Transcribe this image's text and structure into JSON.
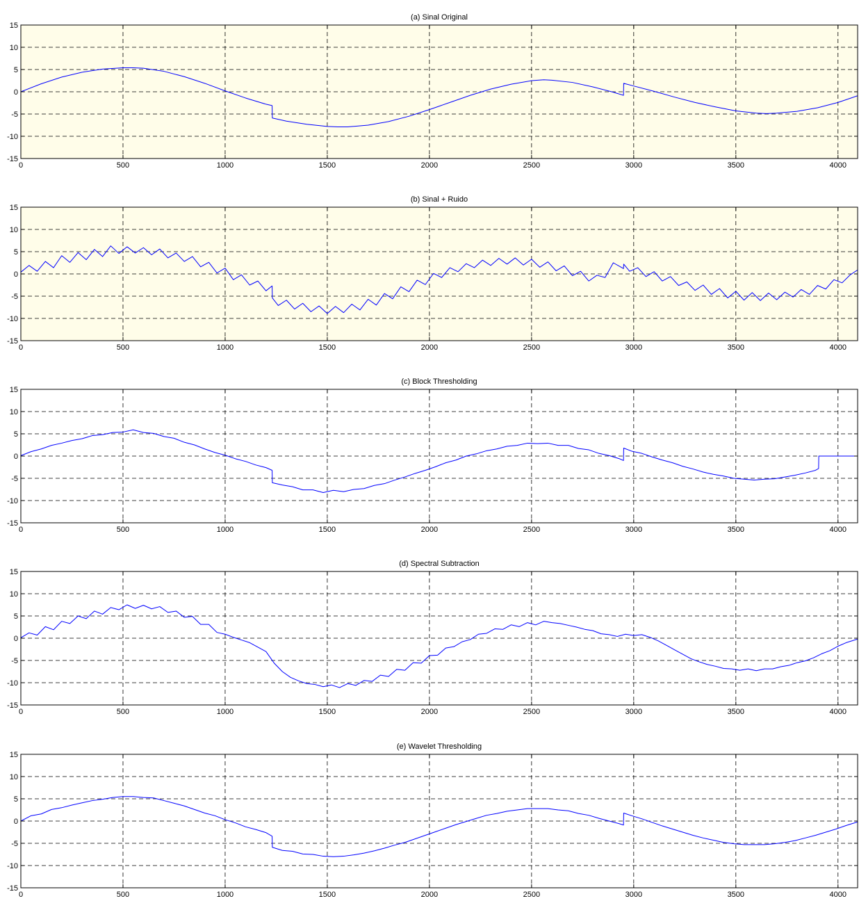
{
  "style": {
    "line_color": "#0000ff",
    "grid_color": "#000000",
    "axes_color": "#000000",
    "highlight_bg": "#fffde9",
    "plain_bg": "#ffffff"
  },
  "chart_data": [
    {
      "type": "line",
      "title": "(a) Sinal Original",
      "xlabel": "",
      "ylabel": "",
      "xlim": [
        0,
        4096
      ],
      "ylim": [
        -15,
        15
      ],
      "xticks": [
        0,
        500,
        1000,
        1500,
        2000,
        2500,
        3000,
        3500,
        4000
      ],
      "yticks": [
        15,
        10,
        5,
        0,
        -5,
        -10,
        -15
      ],
      "grid": true,
      "background": "highlight",
      "series": [
        {
          "x": [
            0,
            100,
            200,
            300,
            400,
            500,
            550,
            600,
            700,
            800,
            900,
            1000,
            1100,
            1200,
            1230,
            1231,
            1300,
            1400,
            1500,
            1550,
            1600,
            1700,
            1800,
            1900,
            2000,
            2100,
            2200,
            2300,
            2400,
            2500,
            2560,
            2600,
            2700,
            2800,
            2900,
            2950,
            2951,
            3000,
            3100,
            3200,
            3300,
            3400,
            3500,
            3600,
            3650,
            3700,
            3800,
            3900,
            4000,
            4096
          ],
          "y": [
            0,
            1.8,
            3.3,
            4.4,
            5.1,
            5.4,
            5.4,
            5.3,
            4.6,
            3.4,
            1.9,
            0.2,
            -1.4,
            -2.8,
            -3.1,
            -5.9,
            -6.6,
            -7.3,
            -7.8,
            -7.9,
            -7.9,
            -7.5,
            -6.7,
            -5.5,
            -4.0,
            -2.4,
            -0.8,
            0.6,
            1.7,
            2.5,
            2.7,
            2.6,
            2.1,
            1.1,
            -0.1,
            -0.8,
            1.9,
            1.3,
            0.1,
            -1.2,
            -2.4,
            -3.4,
            -4.3,
            -4.8,
            -4.9,
            -4.8,
            -4.4,
            -3.6,
            -2.4,
            -0.9
          ]
        }
      ]
    },
    {
      "type": "line",
      "title": "(b) Sinal + Ruido",
      "xlabel": "",
      "ylabel": "",
      "xlim": [
        0,
        4096
      ],
      "ylim": [
        -15,
        15
      ],
      "xticks": [
        0,
        500,
        1000,
        1500,
        2000,
        2500,
        3000,
        3500,
        4000
      ],
      "yticks": [
        15,
        10,
        5,
        0,
        -5,
        -10,
        -15
      ],
      "grid": true,
      "background": "highlight",
      "series": [
        {
          "x": [
            0,
            40,
            80,
            120,
            160,
            200,
            240,
            280,
            320,
            360,
            400,
            440,
            480,
            520,
            560,
            600,
            640,
            680,
            720,
            760,
            800,
            840,
            880,
            920,
            960,
            1000,
            1040,
            1080,
            1120,
            1160,
            1200,
            1230,
            1231,
            1260,
            1300,
            1340,
            1380,
            1420,
            1460,
            1500,
            1540,
            1580,
            1620,
            1660,
            1700,
            1740,
            1780,
            1820,
            1860,
            1900,
            1940,
            1980,
            2020,
            2060,
            2100,
            2140,
            2180,
            2220,
            2260,
            2300,
            2340,
            2380,
            2420,
            2460,
            2500,
            2540,
            2580,
            2620,
            2660,
            2700,
            2740,
            2780,
            2820,
            2860,
            2900,
            2950,
            2951,
            2980,
            3020,
            3060,
            3100,
            3140,
            3180,
            3220,
            3260,
            3300,
            3340,
            3380,
            3420,
            3460,
            3500,
            3540,
            3580,
            3620,
            3660,
            3700,
            3740,
            3780,
            3820,
            3860,
            3900,
            3940,
            3980,
            4020,
            4060,
            4096
          ],
          "y": [
            0.4,
            1.9,
            0.6,
            2.8,
            1.4,
            4.1,
            2.6,
            4.8,
            3.2,
            5.5,
            3.9,
            6.3,
            4.6,
            6.1,
            4.7,
            5.9,
            4.3,
            5.6,
            3.6,
            4.7,
            2.8,
            3.9,
            1.6,
            2.6,
            0.2,
            1.3,
            -1.3,
            -0.2,
            -2.5,
            -1.6,
            -3.8,
            -2.7,
            -5.4,
            -7.1,
            -5.9,
            -7.9,
            -6.6,
            -8.5,
            -7.2,
            -8.9,
            -7.3,
            -8.7,
            -6.8,
            -8.1,
            -5.7,
            -7.0,
            -4.4,
            -5.6,
            -2.9,
            -4.0,
            -1.4,
            -2.4,
            0.1,
            -0.8,
            1.4,
            0.5,
            2.3,
            1.4,
            3.1,
            1.9,
            3.5,
            2.2,
            3.6,
            2.0,
            3.3,
            1.5,
            2.7,
            0.7,
            1.8,
            -0.4,
            0.6,
            -1.6,
            -0.3,
            -0.8,
            2.5,
            1.2,
            2.2,
            0.6,
            1.4,
            -0.6,
            0.5,
            -1.6,
            -0.6,
            -2.6,
            -1.8,
            -3.7,
            -2.5,
            -4.6,
            -3.3,
            -5.4,
            -3.9,
            -5.9,
            -4.2,
            -6.0,
            -4.3,
            -5.8,
            -4.1,
            -5.2,
            -3.5,
            -4.6,
            -2.6,
            -3.4,
            -1.3,
            -2.0,
            -0.2,
            0.9
          ]
        }
      ]
    },
    {
      "type": "line",
      "title": "(c) Block Thresholding",
      "xlabel": "",
      "ylabel": "",
      "xlim": [
        0,
        4096
      ],
      "ylim": [
        -15,
        15
      ],
      "xticks": [
        0,
        500,
        1000,
        1500,
        2000,
        2500,
        3000,
        3500,
        4000
      ],
      "yticks": [
        15,
        10,
        5,
        0,
        -5,
        -10,
        -15
      ],
      "grid": true,
      "background": "plain",
      "series": [
        {
          "x": [
            0,
            50,
            100,
            150,
            200,
            250,
            300,
            350,
            400,
            450,
            500,
            550,
            600,
            650,
            700,
            750,
            800,
            850,
            900,
            950,
            1000,
            1050,
            1100,
            1150,
            1200,
            1230,
            1231,
            1280,
            1330,
            1380,
            1430,
            1480,
            1530,
            1580,
            1630,
            1680,
            1730,
            1780,
            1830,
            1880,
            1930,
            1980,
            2030,
            2080,
            2130,
            2180,
            2230,
            2280,
            2330,
            2380,
            2430,
            2480,
            2530,
            2580,
            2630,
            2680,
            2730,
            2780,
            2830,
            2880,
            2930,
            2950,
            2951,
            2990,
            3040,
            3090,
            3140,
            3190,
            3240,
            3290,
            3340,
            3390,
            3440,
            3490,
            3540,
            3590,
            3640,
            3690,
            3740,
            3790,
            3840,
            3890,
            3905,
            3906,
            4000,
            4096
          ],
          "y": [
            0.1,
            1.0,
            1.6,
            2.4,
            2.9,
            3.5,
            3.9,
            4.6,
            4.8,
            5.3,
            5.4,
            5.9,
            5.3,
            5.1,
            4.4,
            4.0,
            3.1,
            2.5,
            1.6,
            0.8,
            0.2,
            -0.6,
            -1.2,
            -2.0,
            -2.6,
            -3.2,
            -6.0,
            -6.5,
            -6.9,
            -7.6,
            -7.6,
            -8.2,
            -7.7,
            -8.0,
            -7.5,
            -7.3,
            -6.6,
            -6.2,
            -5.4,
            -4.7,
            -3.9,
            -3.2,
            -2.4,
            -1.5,
            -0.9,
            0.0,
            0.5,
            1.2,
            1.6,
            2.2,
            2.4,
            2.9,
            2.8,
            2.9,
            2.4,
            2.4,
            1.7,
            1.4,
            0.6,
            0.1,
            -0.6,
            -1.0,
            1.8,
            1.1,
            0.6,
            -0.2,
            -0.9,
            -1.5,
            -2.3,
            -2.9,
            -3.6,
            -4.1,
            -4.5,
            -5.0,
            -5.2,
            -5.4,
            -5.2,
            -5.1,
            -4.7,
            -4.3,
            -3.8,
            -3.2,
            -2.8,
            0.0,
            0.0,
            0.0
          ]
        }
      ]
    },
    {
      "type": "line",
      "title": "(d) Spectral Subtraction",
      "xlabel": "",
      "ylabel": "",
      "xlim": [
        0,
        4096
      ],
      "ylim": [
        -15,
        15
      ],
      "xticks": [
        0,
        500,
        1000,
        1500,
        2000,
        2500,
        3000,
        3500,
        4000
      ],
      "yticks": [
        15,
        10,
        5,
        0,
        -5,
        -10,
        -15
      ],
      "grid": true,
      "background": "plain",
      "series": [
        {
          "x": [
            0,
            40,
            80,
            120,
            160,
            200,
            240,
            280,
            320,
            360,
            400,
            440,
            480,
            520,
            560,
            600,
            640,
            680,
            720,
            760,
            800,
            840,
            880,
            920,
            960,
            1000,
            1040,
            1080,
            1120,
            1160,
            1200,
            1240,
            1280,
            1320,
            1360,
            1400,
            1440,
            1480,
            1520,
            1560,
            1600,
            1640,
            1680,
            1720,
            1760,
            1800,
            1840,
            1880,
            1920,
            1960,
            2000,
            2040,
            2080,
            2120,
            2160,
            2200,
            2240,
            2280,
            2320,
            2360,
            2400,
            2440,
            2480,
            2520,
            2560,
            2600,
            2640,
            2680,
            2720,
            2760,
            2800,
            2840,
            2880,
            2920,
            2960,
            3000,
            3040,
            3080,
            3120,
            3160,
            3200,
            3240,
            3280,
            3320,
            3360,
            3400,
            3440,
            3480,
            3520,
            3560,
            3600,
            3640,
            3680,
            3720,
            3760,
            3800,
            3840,
            3880,
            3920,
            3960,
            4000,
            4040,
            4096
          ],
          "y": [
            0.1,
            1.2,
            0.7,
            2.6,
            1.9,
            3.8,
            3.3,
            5.0,
            4.4,
            6.1,
            5.4,
            6.9,
            6.4,
            7.5,
            6.7,
            7.4,
            6.6,
            7.1,
            5.8,
            6.1,
            4.7,
            4.9,
            3.1,
            3.1,
            1.3,
            0.9,
            0.2,
            -0.4,
            -1.0,
            -2.0,
            -3.0,
            -5.6,
            -7.5,
            -8.8,
            -9.6,
            -10.2,
            -10.4,
            -10.9,
            -10.5,
            -11.1,
            -10.2,
            -10.6,
            -9.5,
            -9.7,
            -8.3,
            -8.6,
            -7.0,
            -7.2,
            -5.5,
            -5.6,
            -3.9,
            -3.8,
            -2.2,
            -1.9,
            -0.8,
            -0.3,
            0.9,
            1.1,
            2.1,
            2.0,
            3.0,
            2.6,
            3.5,
            3.0,
            3.8,
            3.5,
            3.3,
            2.9,
            2.5,
            2.0,
            1.7,
            1.0,
            0.8,
            0.4,
            0.9,
            0.6,
            0.8,
            0.2,
            -0.6,
            -1.6,
            -2.6,
            -3.6,
            -4.6,
            -5.3,
            -5.9,
            -6.3,
            -6.8,
            -6.9,
            -7.2,
            -6.9,
            -7.3,
            -6.9,
            -6.9,
            -6.4,
            -6.1,
            -5.5,
            -5.1,
            -4.4,
            -3.5,
            -2.8,
            -1.8,
            -1.0,
            -0.2
          ]
        }
      ]
    },
    {
      "type": "line",
      "title": "(e) Wavelet Thresholding",
      "xlabel": "",
      "ylabel": "",
      "xlim": [
        0,
        4096
      ],
      "ylim": [
        -15,
        15
      ],
      "xticks": [
        0,
        500,
        1000,
        1500,
        2000,
        2500,
        3000,
        3500,
        4000
      ],
      "yticks": [
        15,
        10,
        5,
        0,
        -5,
        -10,
        -15
      ],
      "grid": true,
      "background": "plain",
      "series": [
        {
          "x": [
            0,
            50,
            100,
            150,
            200,
            250,
            300,
            350,
            400,
            450,
            500,
            550,
            600,
            650,
            700,
            750,
            800,
            850,
            900,
            950,
            1000,
            1050,
            1100,
            1150,
            1200,
            1230,
            1231,
            1280,
            1330,
            1380,
            1430,
            1480,
            1530,
            1580,
            1630,
            1680,
            1730,
            1780,
            1830,
            1880,
            1930,
            1980,
            2030,
            2080,
            2130,
            2180,
            2230,
            2280,
            2330,
            2380,
            2430,
            2480,
            2530,
            2580,
            2630,
            2680,
            2730,
            2780,
            2830,
            2880,
            2930,
            2950,
            2951,
            2990,
            3040,
            3090,
            3140,
            3190,
            3240,
            3290,
            3340,
            3390,
            3440,
            3490,
            3540,
            3590,
            3640,
            3690,
            3740,
            3790,
            3840,
            3890,
            3940,
            3990,
            4040,
            4096
          ],
          "y": [
            0.0,
            1.2,
            1.6,
            2.6,
            3.0,
            3.6,
            4.1,
            4.6,
            4.9,
            5.3,
            5.5,
            5.5,
            5.3,
            5.2,
            4.6,
            4.0,
            3.4,
            2.6,
            1.8,
            1.2,
            0.3,
            -0.4,
            -1.3,
            -1.9,
            -2.6,
            -3.4,
            -5.9,
            -6.6,
            -6.8,
            -7.4,
            -7.5,
            -7.9,
            -8.0,
            -7.9,
            -7.6,
            -7.2,
            -6.7,
            -6.1,
            -5.4,
            -4.8,
            -4.0,
            -3.2,
            -2.4,
            -1.6,
            -0.8,
            -0.1,
            0.6,
            1.3,
            1.7,
            2.2,
            2.5,
            2.8,
            2.8,
            2.8,
            2.5,
            2.3,
            1.7,
            1.3,
            0.6,
            0.0,
            -0.6,
            -0.9,
            1.8,
            1.2,
            0.5,
            -0.3,
            -1.1,
            -1.8,
            -2.5,
            -3.2,
            -3.8,
            -4.3,
            -4.8,
            -5.1,
            -5.3,
            -5.3,
            -5.3,
            -5.1,
            -4.8,
            -4.4,
            -3.8,
            -3.2,
            -2.5,
            -1.8,
            -1.0,
            -0.2
          ]
        }
      ]
    }
  ]
}
